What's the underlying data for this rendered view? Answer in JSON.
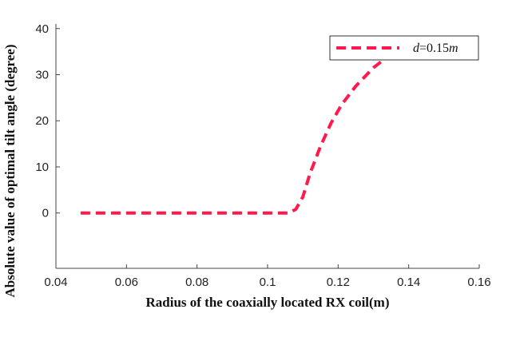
{
  "chart_data": {
    "type": "line",
    "title": "",
    "xlabel": "Radius of the coaxially located RX coil(m)",
    "ylabel": "Absolute value of optimal tilt angle (degree)",
    "xlim": [
      0.04,
      0.16
    ],
    "ylim": [
      -12,
      41
    ],
    "x_ticks": [
      "0.04",
      "0.06",
      "0.08",
      "0.1",
      "0.12",
      "0.14",
      "0.16"
    ],
    "y_ticks": [
      "0",
      "10",
      "20",
      "30",
      "40"
    ],
    "grid": false,
    "legend_position": "top-right",
    "series": [
      {
        "name": "d=0.15m",
        "legend_var": "d",
        "legend_rest": "=0.15",
        "legend_unit": "m",
        "color": "#ff1a4b",
        "style": "dashed",
        "x": [
          0.047,
          0.06,
          0.08,
          0.1,
          0.106,
          0.108,
          0.11,
          0.112,
          0.115,
          0.118,
          0.121,
          0.125,
          0.13,
          0.135,
          0.141
        ],
        "y": [
          0,
          0,
          0,
          0,
          0,
          0.8,
          3.5,
          8.5,
          14.5,
          19.5,
          23.5,
          27.5,
          31.5,
          34.5,
          36.5
        ]
      }
    ]
  }
}
